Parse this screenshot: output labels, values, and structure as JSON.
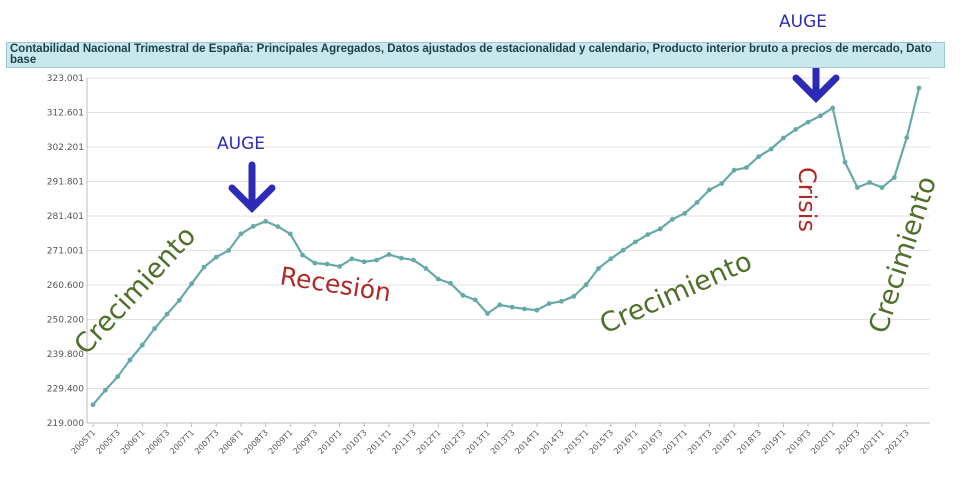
{
  "title": "Contabilidad Nacional Trimestral de España: Principales Agregados, Datos ajustados de estacionalidad y calendario, Producto interior bruto a precios de mercado, Dato base",
  "chart_data": {
    "type": "line",
    "title": "Contabilidad Nacional Trimestral de España: Principales Agregados, Datos ajustados de estacionalidad y calendario, Producto interior bruto a precios de mercado, Dato base",
    "xlabel": "",
    "ylabel": "",
    "ylim": [
      219000,
      323001
    ],
    "grid": true,
    "legend": "none",
    "line_color": "#66a9a8",
    "y_ticks": [
      "323.001",
      "312.601",
      "302.201",
      "291.801",
      "281.401",
      "271.001",
      "260.600",
      "250.200",
      "239.800",
      "229.400",
      "219.000"
    ],
    "x_tick_labels": [
      "2005T1",
      "2005T3",
      "2006T1",
      "2006T3",
      "2007T1",
      "2007T3",
      "2008T1",
      "2008T3",
      "2009T1",
      "2009T3",
      "2010T1",
      "2010T3",
      "2011T1",
      "2011T3",
      "2012T1",
      "2012T3",
      "2013T1",
      "2013T3",
      "2014T1",
      "2014T3",
      "2015T1",
      "2015T3",
      "2016T1",
      "2016T3",
      "2017T1",
      "2017T3",
      "2018T1",
      "2018T3",
      "2019T1",
      "2019T3",
      "2020T1",
      "2020T3",
      "2021T1",
      "2021T3"
    ],
    "x": [
      "2005T1",
      "2005T2",
      "2005T3",
      "2005T4",
      "2006T1",
      "2006T2",
      "2006T3",
      "2006T4",
      "2007T1",
      "2007T2",
      "2007T3",
      "2007T4",
      "2008T1",
      "2008T2",
      "2008T3",
      "2008T4",
      "2009T1",
      "2009T2",
      "2009T3",
      "2009T4",
      "2010T1",
      "2010T2",
      "2010T3",
      "2010T4",
      "2011T1",
      "2011T2",
      "2011T3",
      "2011T4",
      "2012T1",
      "2012T2",
      "2012T3",
      "2012T4",
      "2013T1",
      "2013T2",
      "2013T3",
      "2013T4",
      "2014T1",
      "2014T2",
      "2014T3",
      "2014T4",
      "2015T1",
      "2015T2",
      "2015T3",
      "2015T4",
      "2016T1",
      "2016T2",
      "2016T3",
      "2016T4",
      "2017T1",
      "2017T2",
      "2017T3",
      "2017T4",
      "2018T1",
      "2018T2",
      "2018T3",
      "2018T4",
      "2019T1",
      "2019T2",
      "2019T3",
      "2019T4",
      "2020T1",
      "2020T2",
      "2020T3",
      "2020T4",
      "2021T1",
      "2021T2",
      "2021T3",
      "2021T4"
    ],
    "series": [
      {
        "values": [
          224500,
          228900,
          233000,
          238000,
          242500,
          247500,
          251800,
          256000,
          261000,
          266000,
          269000,
          271000,
          276000,
          278300,
          279800,
          278200,
          276000,
          269600,
          267200,
          266900,
          266200,
          268500,
          267600,
          268100,
          269800,
          268700,
          268100,
          265600,
          262400,
          261100,
          257500,
          256100,
          252000,
          254600,
          253900,
          253400,
          253000,
          255000,
          255700,
          257200,
          260700,
          265600,
          268500,
          271100,
          273600,
          275800,
          277500,
          280400,
          282200,
          285500,
          289300,
          291200,
          295200,
          296000,
          299300,
          301600,
          304900,
          307500,
          309700,
          311600,
          314000,
          297600,
          290000,
          291500,
          290000,
          293000,
          305000,
          320000
        ]
      }
    ],
    "annotations": {
      "auge_2008": "AUGE",
      "auge_2019": "AUGE",
      "crecimiento_1": "Crecimiento",
      "recesion": "Recesión",
      "crecimiento_2": "Crecimiento",
      "crisis": "Crisis",
      "crecimiento_3": "Crecimiento"
    },
    "colors": {
      "auge": "#2d2bb5",
      "crecimiento": "#4f6f2a",
      "recesion": "#b02a2a"
    }
  }
}
